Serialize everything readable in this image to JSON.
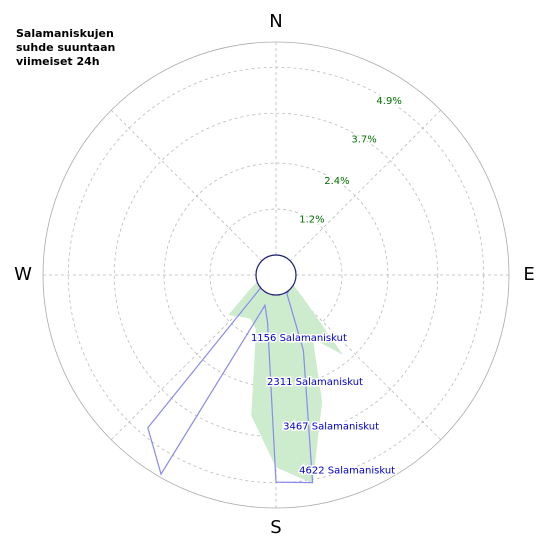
{
  "chart_data": {
    "type": "polar",
    "title": [
      "Salamaniskujen",
      "suhde suuntaan",
      "viimeiset 24h"
    ],
    "compass": [
      "N",
      "E",
      "S",
      "W"
    ],
    "x": [
      0,
      10,
      20,
      30,
      40,
      50,
      60,
      70,
      80,
      90,
      100,
      110,
      120,
      130,
      140,
      150,
      160,
      170,
      180,
      190,
      200,
      210,
      220,
      230,
      240,
      250,
      260,
      270,
      280,
      290,
      300,
      310,
      320,
      330,
      340,
      350
    ],
    "series": [
      {
        "color": "#cdeccd",
        "axis": "r",
        "values": [
          0,
          0,
          0,
          0,
          0,
          0,
          0,
          0,
          0,
          0,
          0,
          0,
          0,
          0.4,
          2.2,
          1.4,
          3.0,
          5.0,
          4.5,
          3.2,
          1.0,
          0.8,
          0.9,
          1.1,
          0.3,
          0,
          0,
          0,
          0,
          0,
          0,
          0,
          0,
          0,
          0,
          0
        ]
      },
      {
        "color": "#8a8aee",
        "axis": "r2",
        "values": [
          0,
          0,
          0,
          0,
          0,
          0,
          0,
          0,
          0,
          0,
          0,
          0,
          0,
          0,
          0,
          50,
          1475,
          4690,
          4600,
          700,
          300,
          5160,
          4410,
          0,
          0,
          0,
          0,
          0,
          0,
          0,
          0,
          0,
          0,
          0,
          0,
          0
        ]
      }
    ],
    "rlim": [
      0,
      5.56
    ],
    "rticks": [
      {
        "value": 1.2,
        "label": "1.2%"
      },
      {
        "value": 2.4,
        "label": "2.4%"
      },
      {
        "value": 3.7,
        "label": "3.7%"
      },
      {
        "value": 4.9,
        "label": "4.9%"
      }
    ],
    "r2lim": [
      0,
      5236
    ],
    "r2ticks": [
      {
        "value": 1156,
        "label": "1156 Salamaniskut"
      },
      {
        "value": 2311,
        "label": "2311 Salamaniskut"
      },
      {
        "value": 3467,
        "label": "3467 Salamaniskut"
      },
      {
        "value": 4622,
        "label": "4622 Salamaniskut"
      }
    ],
    "grid": true
  }
}
